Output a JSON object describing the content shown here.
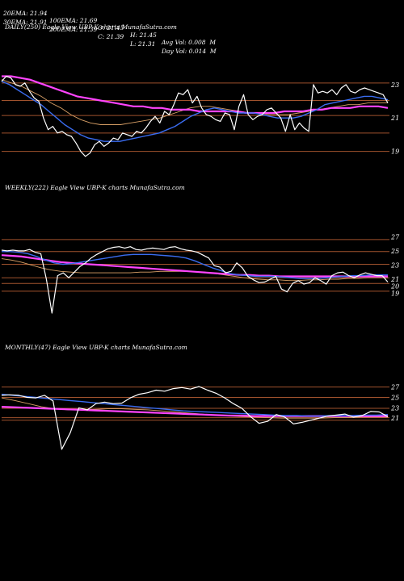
{
  "header": {
    "row1": [
      "20EMA: 21.94",
      "100EMA: 21.69",
      "O: 21.45",
      "H: 21.45",
      "Avg Vol: 0.008  M"
    ],
    "row2": [
      "30EMA: 21.91",
      "200EMA: 21.39",
      "C: 21.39",
      "L: 21.31",
      "Day Vol: 0.014  M"
    ]
  },
  "colors": {
    "background": "#000000",
    "price": "#ffffff",
    "ema_short": "#3a6cf0",
    "ema_long": "#ff44ff",
    "ema_mid": "#d9a066",
    "level_line": "#a0522d"
  },
  "chart_data": [
    {
      "type": "line",
      "title": "DAILY(250) Eagle  View  UBP-K charts MunafaSutra.com",
      "yticks": [
        "23",
        "21",
        "19"
      ],
      "ylim": [
        18.4,
        24.3
      ],
      "grid": false,
      "levels": [
        23.1,
        22.05,
        21.15,
        20.1,
        19.0
      ],
      "series": [
        {
          "role": "price",
          "values": [
            23.2,
            23.5,
            23.4,
            23.0,
            22.9,
            23.1,
            22.6,
            22.2,
            22.0,
            21.0,
            20.3,
            20.5,
            20.1,
            20.2,
            20.0,
            19.9,
            19.5,
            19.0,
            18.7,
            18.9,
            19.4,
            19.6,
            19.3,
            19.5,
            19.8,
            19.7,
            20.1,
            20.0,
            19.9,
            20.2,
            20.1,
            20.4,
            20.8,
            21.1,
            20.7,
            21.4,
            21.2,
            21.8,
            22.5,
            22.4,
            22.7,
            21.9,
            22.3,
            21.6,
            21.2,
            21.1,
            20.9,
            20.8,
            21.3,
            21.2,
            20.3,
            21.7,
            22.4,
            21.2,
            20.9,
            21.1,
            21.2,
            21.5,
            21.6,
            21.3,
            21.0,
            20.2,
            21.2,
            20.3,
            20.7,
            20.4,
            20.2,
            23.0,
            22.5,
            22.6,
            22.5,
            22.7,
            22.4,
            22.8,
            23.0,
            22.6,
            22.5,
            22.7,
            22.8,
            22.7,
            22.6,
            22.5,
            22.4,
            21.9
          ]
        },
        {
          "role": "ema_short",
          "values": [
            23.2,
            23.0,
            22.7,
            22.4,
            22.1,
            21.8,
            21.4,
            21.0,
            20.6,
            20.3,
            20.0,
            19.8,
            19.7,
            19.6,
            19.6,
            19.6,
            19.7,
            19.8,
            19.9,
            20.0,
            20.1,
            20.3,
            20.5,
            20.8,
            21.1,
            21.3,
            21.5,
            21.6,
            21.5,
            21.4,
            21.3,
            21.3,
            21.3,
            21.2,
            21.1,
            21.0,
            21.0,
            21.0,
            21.1,
            21.3,
            21.5,
            21.8,
            21.9,
            22.0,
            22.1,
            22.2,
            22.3,
            22.3,
            22.2,
            22.1
          ]
        },
        {
          "role": "ema_long",
          "values": [
            23.5,
            23.5,
            23.4,
            23.3,
            23.1,
            22.9,
            22.7,
            22.5,
            22.3,
            22.2,
            22.1,
            22.0,
            21.9,
            21.8,
            21.7,
            21.7,
            21.6,
            21.6,
            21.5,
            21.5,
            21.5,
            21.4,
            21.4,
            21.4,
            21.4,
            21.4,
            21.3,
            21.3,
            21.3,
            21.3,
            21.4,
            21.4,
            21.4,
            21.5,
            21.5,
            21.6,
            21.6,
            21.6,
            21.7,
            21.7,
            21.7,
            21.6
          ]
        },
        {
          "role": "ema_mid",
          "values": [
            23.3,
            23.1,
            22.9,
            22.6,
            22.3,
            21.9,
            21.6,
            21.2,
            20.9,
            20.7,
            20.6,
            20.6,
            20.6,
            20.7,
            20.8,
            20.9,
            21.0,
            21.2,
            21.4,
            21.6,
            21.7,
            21.7,
            21.6,
            21.5,
            21.4,
            21.3,
            21.3,
            21.2,
            21.2,
            21.2,
            21.3,
            21.4,
            21.5,
            21.6,
            21.7,
            21.8,
            21.8,
            21.9,
            21.9,
            21.9
          ]
        }
      ]
    },
    {
      "type": "line",
      "title": "WEEKLY(222) Eagle  View  UBP-K charts MunafaSutra.com",
      "yticks": [
        "27",
        "25",
        "23",
        "21",
        "20",
        "19"
      ],
      "ylim": [
        17.8,
        28.3
      ],
      "grid": false,
      "levels": [
        26.6,
        24.9,
        23.1,
        21.2,
        20.4,
        19.3
      ],
      "series": [
        {
          "role": "price",
          "values": [
            25.1,
            25.0,
            25.1,
            25.0,
            25.0,
            25.2,
            24.8,
            24.6,
            21.0,
            16.2,
            21.5,
            21.9,
            21.2,
            22.0,
            22.8,
            23.3,
            24.0,
            24.5,
            24.9,
            25.3,
            25.5,
            25.6,
            25.4,
            25.6,
            25.2,
            25.1,
            25.3,
            25.4,
            25.3,
            25.2,
            25.5,
            25.6,
            25.3,
            25.1,
            25.0,
            24.8,
            24.4,
            24.0,
            22.9,
            22.7,
            21.9,
            22.1,
            23.3,
            22.6,
            21.4,
            20.9,
            20.5,
            20.6,
            21.0,
            21.4,
            19.6,
            19.2,
            20.4,
            20.8,
            20.3,
            20.5,
            21.2,
            20.8,
            20.3,
            21.5,
            21.9,
            22.0,
            21.5,
            21.2,
            21.6,
            21.9,
            21.7,
            21.5,
            21.5,
            20.6
          ]
        },
        {
          "role": "ema_short",
          "values": [
            24.9,
            24.9,
            24.8,
            24.6,
            24.2,
            23.7,
            23.3,
            23.1,
            23.2,
            23.4,
            23.6,
            23.8,
            24.0,
            24.2,
            24.4,
            24.5,
            24.5,
            24.5,
            24.4,
            24.3,
            24.2,
            24.0,
            23.6,
            23.1,
            22.6,
            22.2,
            21.8,
            21.6,
            21.5,
            21.4,
            21.4,
            21.4,
            21.3,
            21.2,
            21.1,
            21.1,
            21.1,
            21.2,
            21.3,
            21.4,
            21.5,
            21.5,
            21.6,
            21.6,
            21.6
          ]
        },
        {
          "role": "ema_long",
          "values": [
            24.4,
            24.3,
            24.2,
            24.0,
            23.8,
            23.6,
            23.4,
            23.3,
            23.2,
            23.1,
            23.0,
            22.9,
            22.8,
            22.7,
            22.6,
            22.5,
            22.4,
            22.3,
            22.2,
            22.1,
            22.0,
            21.9,
            21.8,
            21.7,
            21.6,
            21.6,
            21.5,
            21.5,
            21.4,
            21.4,
            21.4,
            21.4,
            21.4,
            21.4,
            21.4,
            21.4,
            21.4,
            21.4,
            21.4,
            21.4
          ]
        },
        {
          "role": "ema_mid",
          "values": [
            23.9,
            23.7,
            23.4,
            23.0,
            22.6,
            22.3,
            22.1,
            22.0,
            21.9,
            21.9,
            21.9,
            21.9,
            21.9,
            21.9,
            22.0,
            22.0,
            22.1,
            22.1,
            22.1,
            22.1,
            22.0,
            21.9,
            21.7,
            21.5,
            21.3,
            21.1,
            21.0,
            20.9,
            20.9,
            20.8,
            20.8,
            20.9,
            20.9,
            21.0,
            21.0,
            21.1,
            21.1,
            21.2,
            21.2,
            21.2
          ]
        }
      ]
    },
    {
      "type": "line",
      "title": "MONTHLY(47) Eagle  View  UBP-K charts MunafaSutra.com",
      "yticks": [
        "27",
        "25",
        "23",
        "21"
      ],
      "ylim": [
        14.5,
        28.5
      ],
      "grid": false,
      "levels": [
        27.0,
        25.0,
        22.9,
        21.1,
        20.6
      ],
      "series": [
        {
          "role": "price",
          "values": [
            25.4,
            25.5,
            25.4,
            25.0,
            24.9,
            25.4,
            24.3,
            15.0,
            18.2,
            23.0,
            22.6,
            23.8,
            24.1,
            23.8,
            23.9,
            24.9,
            25.6,
            25.9,
            26.4,
            26.2,
            26.7,
            26.9,
            26.6,
            27.1,
            26.4,
            25.8,
            24.9,
            23.8,
            22.9,
            21.3,
            20.0,
            20.4,
            21.7,
            21.2,
            19.9,
            20.2,
            20.6,
            21.0,
            21.4,
            21.6,
            21.8,
            21.2,
            21.5,
            22.3,
            22.2,
            21.3
          ]
        },
        {
          "role": "ema_short",
          "values": [
            25.6,
            25.4,
            25.2,
            25.0,
            24.8,
            24.6,
            24.4,
            24.2,
            24.0,
            23.8,
            23.6,
            23.4,
            23.2,
            23.0,
            22.8,
            22.6,
            22.4,
            22.3,
            22.2,
            22.1,
            22.0,
            21.9,
            21.8,
            21.7,
            21.6,
            21.5,
            21.5,
            21.4,
            21.4,
            21.5,
            21.5,
            21.5,
            21.6,
            21.6,
            21.7
          ]
        },
        {
          "role": "ema_long",
          "values": [
            23.2,
            23.1,
            23.0,
            22.9,
            22.8,
            22.7,
            22.6,
            22.5,
            22.4,
            22.3,
            22.2,
            22.1,
            22.0,
            21.9,
            21.8,
            21.7,
            21.6,
            21.5,
            21.5,
            21.4,
            21.4,
            21.4,
            21.4,
            21.4,
            21.4,
            21.4,
            21.4,
            21.4,
            21.4,
            21.4
          ]
        },
        {
          "role": "ema_mid",
          "values": [
            24.9,
            24.4,
            23.8,
            23.2,
            22.8,
            22.6,
            22.6,
            22.7,
            22.8,
            22.8,
            22.7,
            22.6,
            22.4,
            22.2,
            22.0,
            21.8,
            21.6,
            21.4,
            21.3,
            21.2,
            21.1,
            21.0,
            21.0,
            21.0,
            21.0,
            21.1,
            21.1,
            21.2,
            21.2,
            21.2
          ]
        }
      ]
    }
  ]
}
